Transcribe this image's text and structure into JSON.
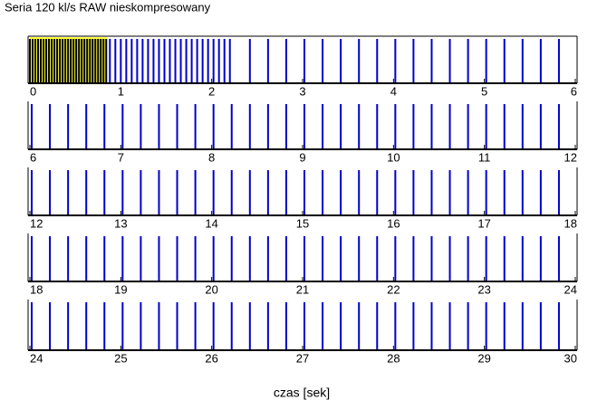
{
  "chart_data": {
    "type": "timeline",
    "title": "Seria 120 kl/s RAW nieskompresowany",
    "xlabel": "czas [sek]",
    "highlight": {
      "range": [
        0,
        0.85
      ],
      "color": "#ffff40"
    },
    "strips": [
      {
        "xlim": [
          0,
          6
        ],
        "xticks": [
          0,
          1,
          2,
          3,
          4,
          5,
          6
        ]
      },
      {
        "xlim": [
          6,
          12
        ],
        "xticks": [
          6,
          7,
          8,
          9,
          10,
          11,
          12
        ]
      },
      {
        "xlim": [
          12,
          18
        ],
        "xticks": [
          12,
          13,
          14,
          15,
          16,
          17,
          18
        ]
      },
      {
        "xlim": [
          18,
          24
        ],
        "xticks": [
          18,
          19,
          20,
          21,
          22,
          23,
          24
        ]
      },
      {
        "xlim": [
          24,
          30
        ],
        "xticks": [
          24,
          25,
          26,
          27,
          28,
          29,
          30
        ]
      }
    ],
    "series": [
      {
        "color": "#000000",
        "values": [
          0,
          0.03,
          0.06,
          0.09,
          0.12,
          0.15,
          0.18,
          0.21,
          0.24,
          0.27,
          0.3,
          0.33,
          0.36,
          0.39,
          0.42,
          0.45,
          0.48,
          0.51,
          0.54,
          0.57,
          0.6,
          0.63,
          0.66,
          0.69,
          0.72,
          0.75,
          0.78,
          0.81,
          0.84
        ]
      },
      {
        "color": "#0000cc",
        "values": [
          0.88,
          0.94,
          1.0,
          1.06,
          1.12,
          1.18,
          1.24,
          1.3,
          1.36,
          1.42,
          1.48,
          1.54,
          1.6,
          1.66,
          1.72,
          1.78,
          1.84,
          1.9,
          1.96,
          2.02,
          2.08,
          2.14,
          2.2,
          2.42,
          2.62,
          2.82,
          3.02,
          3.22,
          3.42,
          3.62,
          3.82,
          4.02,
          4.22,
          4.42,
          4.62,
          4.82,
          5.02,
          5.22,
          5.42,
          5.62,
          5.82,
          6.02,
          6.22,
          6.42,
          6.62,
          6.82,
          7.02,
          7.22,
          7.42,
          7.62,
          7.82,
          8.02,
          8.22,
          8.42,
          8.62,
          8.82,
          9.02,
          9.22,
          9.42,
          9.62,
          9.82,
          10.02,
          10.22,
          10.42,
          10.62,
          10.82,
          11.02,
          11.22,
          11.42,
          11.62,
          11.82,
          12.02,
          12.22,
          12.42,
          12.62,
          12.82,
          13.02,
          13.22,
          13.42,
          13.62,
          13.82,
          14.02,
          14.22,
          14.42,
          14.62,
          14.82,
          15.02,
          15.22,
          15.42,
          15.62,
          15.82,
          16.02,
          16.22,
          16.42,
          16.62,
          16.82,
          17.02,
          17.22,
          17.42,
          17.62,
          17.82,
          18.02,
          18.22,
          18.42,
          18.62,
          18.82,
          19.02,
          19.22,
          19.42,
          19.62,
          19.82,
          20.02,
          20.22,
          20.42,
          20.62,
          20.82,
          21.02,
          21.22,
          21.42,
          21.62,
          21.82,
          22.02,
          22.22,
          22.42,
          22.62,
          22.82,
          23.02,
          23.22,
          23.42,
          23.62,
          23.82,
          24.02,
          24.22,
          24.42,
          24.62,
          24.82,
          25.02,
          25.22,
          25.42,
          25.62,
          25.82,
          26.02,
          26.22,
          26.42,
          26.62,
          26.82,
          27.02,
          27.22,
          27.42,
          27.62,
          27.82,
          28.02,
          28.22,
          28.42,
          28.62,
          28.82,
          29.02,
          29.22,
          29.42,
          29.62,
          29.82
        ]
      }
    ]
  }
}
